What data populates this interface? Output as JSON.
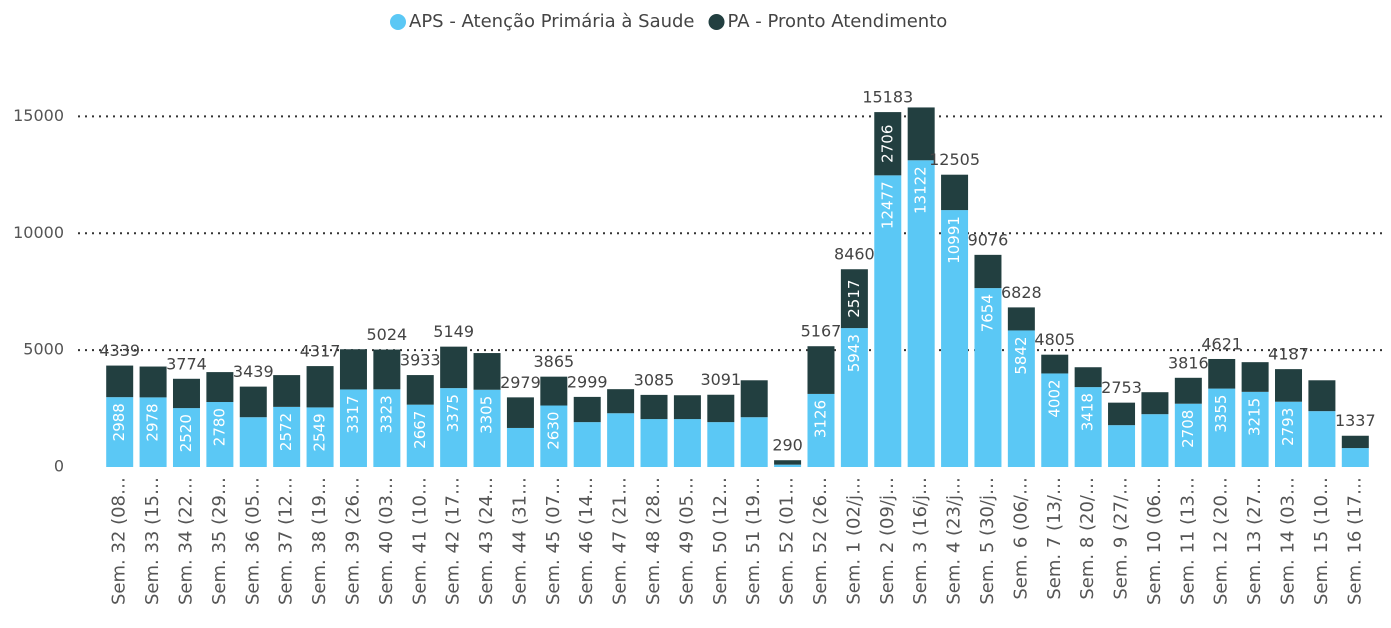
{
  "chart_data": {
    "type": "stacked_bar",
    "categories": [
      "Sem. 32 (08…",
      "Sem. 33 (15…",
      "Sem. 34 (22…",
      "Sem. 35 (29…",
      "Sem. 36 (05…",
      "Sem. 37 (12…",
      "Sem. 38 (19…",
      "Sem. 39 (26…",
      "Sem. 40 (03…",
      "Sem. 41 (10…",
      "Sem. 42 (17…",
      "Sem. 43 (24…",
      "Sem. 44 (31…",
      "Sem. 45 (07…",
      "Sem. 46 (14…",
      "Sem. 47 (21…",
      "Sem. 48 (28…",
      "Sem. 49 (05…",
      "Sem. 50 (12…",
      "Sem. 51 (19…",
      "Sem. 52 (01…",
      "Sem. 52 (26…",
      "Sem. 1 (02/j…",
      "Sem. 2 (09/j…",
      "Sem. 3 (16/j…",
      "Sem. 4 (23/j…",
      "Sem. 5 (30/j…",
      "Sem. 6 (06/…",
      "Sem. 7 (13/…",
      "Sem. 8 (20/…",
      "Sem. 9 (27/…",
      "Sem. 10 (06…",
      "Sem. 11 (13…",
      "Sem. 12 (20…",
      "Sem. 13 (27…",
      "Sem. 14 (03…",
      "Sem. 15 (10…",
      "Sem. 16 (17…"
    ],
    "series": [
      {
        "name": "APS - Atenção Primária à Saude",
        "color": "#5bc8f5",
        "values": [
          2988,
          2978,
          2520,
          2780,
          2130,
          2572,
          2549,
          3317,
          3323,
          2667,
          3375,
          3305,
          1670,
          2630,
          1920,
          2300,
          2050,
          2050,
          1920,
          2130,
          100,
          3126,
          5943,
          12477,
          13122,
          10991,
          7654,
          5842,
          4002,
          3418,
          1790,
          2260,
          2708,
          3355,
          3215,
          2793,
          2390,
          810
        ],
        "labels": [
          2988,
          2978,
          2520,
          2780,
          null,
          2572,
          2549,
          3317,
          3323,
          2667,
          3375,
          3305,
          null,
          2630,
          null,
          null,
          null,
          null,
          null,
          null,
          null,
          3126,
          5943,
          12477,
          13122,
          10991,
          7654,
          5842,
          4002,
          3418,
          null,
          null,
          2708,
          3355,
          3215,
          2793,
          null,
          null
        ]
      },
      {
        "name": "PA - Pronto Atendimento",
        "color": "#223f40",
        "values": [
          1351,
          1320,
          1254,
          1280,
          1309,
          1360,
          1768,
          1720,
          1701,
          1266,
          1774,
          1570,
          1309,
          1235,
          1079,
          1030,
          1035,
          1020,
          1171,
          1580,
          190,
          2041,
          2517,
          2706,
          2260,
          1514,
          1422,
          986,
          803,
          850,
          963,
          940,
          1108,
          1266,
          1270,
          1394,
          1320,
          527
        ],
        "labels": [
          null,
          null,
          null,
          null,
          null,
          null,
          null,
          null,
          null,
          null,
          null,
          null,
          null,
          null,
          null,
          null,
          null,
          null,
          null,
          null,
          null,
          null,
          2517,
          2706,
          null,
          null,
          null,
          null,
          null,
          null,
          null,
          null,
          null,
          null,
          null,
          null,
          null,
          null
        ]
      }
    ],
    "totals": [
      4339,
      null,
      3774,
      null,
      3439,
      null,
      4317,
      null,
      5024,
      3933,
      5149,
      null,
      2979,
      3865,
      2999,
      null,
      3085,
      null,
      3091,
      null,
      290,
      5167,
      8460,
      15183,
      null,
      12505,
      9076,
      6828,
      4805,
      null,
      2753,
      null,
      3816,
      4621,
      null,
      4187,
      null,
      1337
    ],
    "ylim": [
      0,
      16000
    ],
    "yticks": [
      0,
      5000,
      10000,
      15000
    ],
    "grid": true,
    "legend": "top"
  }
}
